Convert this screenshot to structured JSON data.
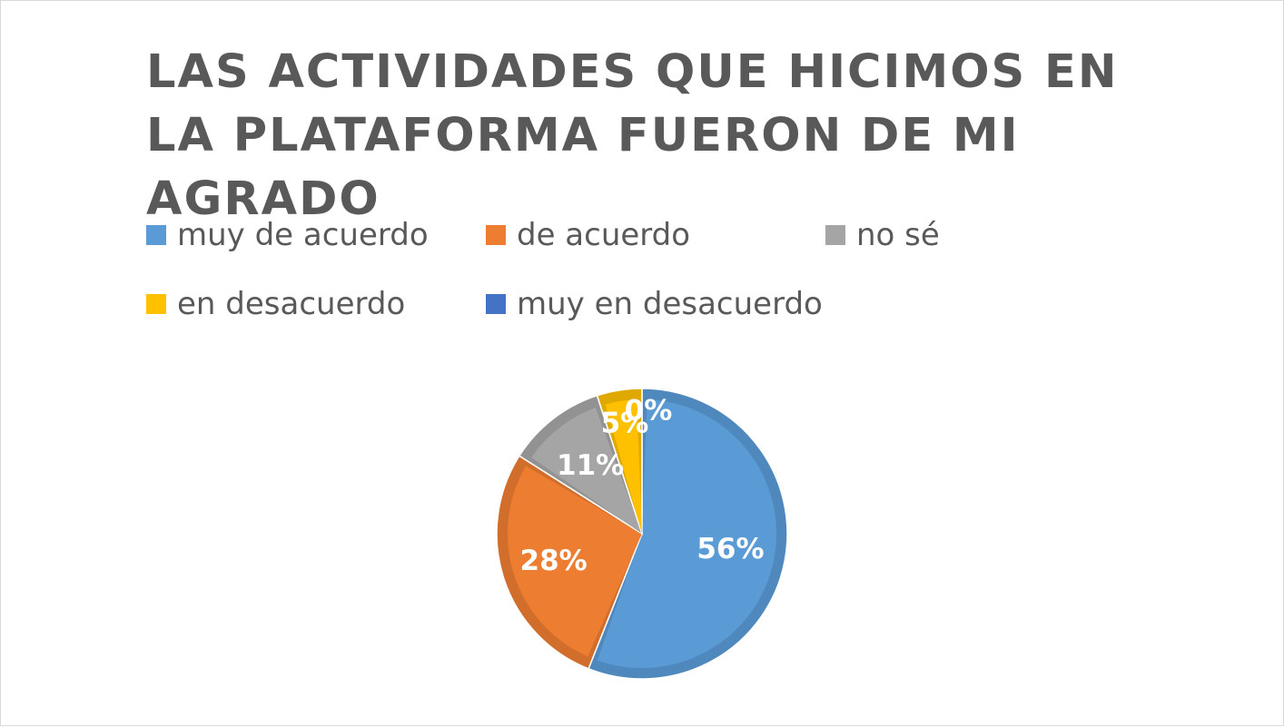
{
  "chart_data": {
    "type": "pie",
    "title": "LAS ACTIVIDADES QUE HICIMOS EN LA PLATAFORMA FUERON DE MI AGRADO",
    "legend_position": "top",
    "slices": [
      {
        "name": "muy de acuerdo",
        "value": 56,
        "label": "56%",
        "color": "#5b9bd5",
        "edge": "#4f88bd"
      },
      {
        "name": "de acuerdo",
        "value": 28,
        "label": "28%",
        "color": "#ed7d31",
        "edge": "#d26e2b"
      },
      {
        "name": "no sé",
        "value": 11,
        "label": "11%",
        "color": "#a5a5a5",
        "edge": "#929292"
      },
      {
        "name": "en desacuerdo",
        "value": 5,
        "label": "5%",
        "color": "#ffc000",
        "edge": "#e0a900"
      },
      {
        "name": "muy en desacuerdo",
        "value": 0,
        "label": "0%",
        "color": "#4472c4",
        "edge": "#3c64ad"
      }
    ]
  }
}
